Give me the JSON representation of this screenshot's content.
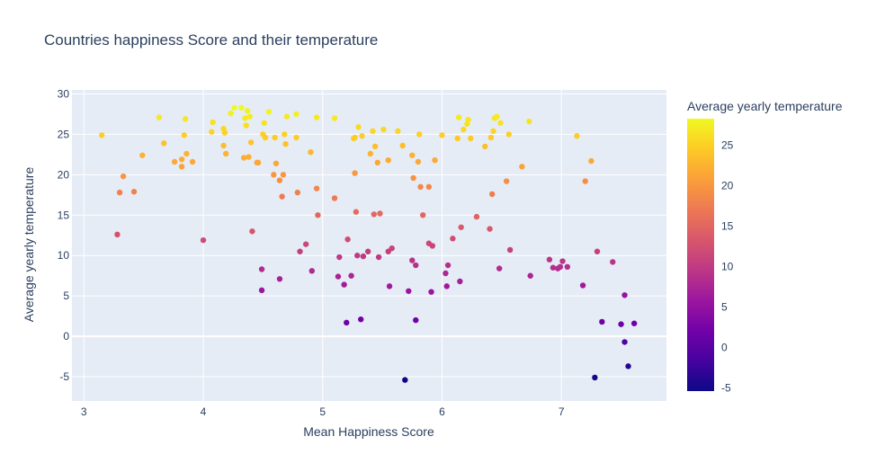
{
  "chart_data": {
    "type": "scatter",
    "title": "Countries happiness Score and their temperature",
    "xlabel": "Mean Happiness Score",
    "ylabel": "Average yearly temperature",
    "colorbar_title": "Average yearly temperature",
    "xlim": [
      2.9,
      7.88
    ],
    "ylim": [
      -8,
      30.5
    ],
    "x_ticks": [
      3,
      4,
      5,
      6,
      7
    ],
    "y_ticks": [
      -5,
      0,
      5,
      10,
      15,
      20,
      25,
      30
    ],
    "colorbar_range": [
      -5.4,
      28.3
    ],
    "colorbar_ticks": [
      -5,
      0,
      5,
      10,
      15,
      20,
      25
    ],
    "colorscale": [
      "#0d0887",
      "#46039f",
      "#7201a8",
      "#9c179e",
      "#bd3786",
      "#d8576b",
      "#ed7953",
      "#fb9f3a",
      "#fdca26",
      "#f0f921"
    ],
    "background": "#e5ecf6",
    "grid": true,
    "points": [
      [
        3.15,
        24.9
      ],
      [
        3.3,
        17.8
      ],
      [
        3.33,
        19.8
      ],
      [
        3.42,
        17.9
      ],
      [
        3.28,
        12.6
      ],
      [
        3.49,
        22.4
      ],
      [
        3.63,
        27.1
      ],
      [
        3.67,
        23.9
      ],
      [
        3.76,
        21.6
      ],
      [
        3.82,
        21.9
      ],
      [
        3.82,
        21.0
      ],
      [
        3.84,
        24.9
      ],
      [
        3.85,
        26.9
      ],
      [
        3.86,
        22.6
      ],
      [
        3.91,
        21.6
      ],
      [
        4.0,
        11.9
      ],
      [
        4.07,
        25.3
      ],
      [
        4.08,
        26.5
      ],
      [
        4.17,
        23.6
      ],
      [
        4.17,
        25.7
      ],
      [
        4.18,
        25.2
      ],
      [
        4.19,
        22.6
      ],
      [
        4.23,
        27.6
      ],
      [
        4.26,
        28.3
      ],
      [
        4.32,
        28.3
      ],
      [
        4.34,
        22.1
      ],
      [
        4.35,
        27.0
      ],
      [
        4.36,
        26.1
      ],
      [
        4.37,
        27.9
      ],
      [
        4.38,
        22.2
      ],
      [
        4.39,
        27.2
      ],
      [
        4.4,
        24.0
      ],
      [
        4.41,
        13.0
      ],
      [
        4.45,
        21.5
      ],
      [
        4.46,
        21.5
      ],
      [
        4.49,
        8.3
      ],
      [
        4.49,
        5.7
      ],
      [
        4.5,
        25.0
      ],
      [
        4.51,
        26.4
      ],
      [
        4.52,
        24.6
      ],
      [
        4.55,
        27.8
      ],
      [
        4.59,
        20.0
      ],
      [
        4.61,
        21.4
      ],
      [
        4.6,
        24.6
      ],
      [
        4.64,
        7.1
      ],
      [
        4.64,
        19.3
      ],
      [
        4.66,
        17.3
      ],
      [
        4.67,
        20.0
      ],
      [
        4.68,
        25.0
      ],
      [
        4.69,
        23.8
      ],
      [
        4.7,
        27.2
      ],
      [
        4.78,
        27.5
      ],
      [
        4.78,
        24.6
      ],
      [
        4.79,
        17.8
      ],
      [
        4.81,
        10.5
      ],
      [
        4.86,
        11.4
      ],
      [
        4.9,
        22.8
      ],
      [
        4.91,
        8.1
      ],
      [
        4.95,
        27.1
      ],
      [
        4.95,
        18.3
      ],
      [
        4.96,
        15.0
      ],
      [
        5.1,
        27.0
      ],
      [
        5.1,
        17.1
      ],
      [
        5.13,
        7.4
      ],
      [
        5.14,
        9.8
      ],
      [
        5.18,
        6.4
      ],
      [
        5.2,
        1.7
      ],
      [
        5.21,
        12.0
      ],
      [
        5.24,
        7.5
      ],
      [
        5.26,
        24.5
      ],
      [
        5.27,
        24.6
      ],
      [
        5.27,
        20.2
      ],
      [
        5.28,
        15.4
      ],
      [
        5.29,
        10.0
      ],
      [
        5.3,
        25.9
      ],
      [
        5.32,
        2.1
      ],
      [
        5.33,
        24.8
      ],
      [
        5.34,
        9.9
      ],
      [
        5.38,
        10.5
      ],
      [
        5.4,
        22.6
      ],
      [
        5.42,
        25.4
      ],
      [
        5.43,
        15.1
      ],
      [
        5.44,
        23.5
      ],
      [
        5.46,
        21.5
      ],
      [
        5.47,
        9.8
      ],
      [
        5.48,
        15.2
      ],
      [
        5.51,
        25.6
      ],
      [
        5.55,
        10.5
      ],
      [
        5.55,
        21.8
      ],
      [
        5.56,
        6.2
      ],
      [
        5.58,
        10.9
      ],
      [
        5.63,
        25.4
      ],
      [
        5.67,
        23.6
      ],
      [
        5.69,
        -5.4
      ],
      [
        5.72,
        5.6
      ],
      [
        5.75,
        9.4
      ],
      [
        5.75,
        22.4
      ],
      [
        5.76,
        19.6
      ],
      [
        5.78,
        2.0
      ],
      [
        5.78,
        8.8
      ],
      [
        5.8,
        21.6
      ],
      [
        5.81,
        25.0
      ],
      [
        5.82,
        18.5
      ],
      [
        5.84,
        15.0
      ],
      [
        5.89,
        11.5
      ],
      [
        5.89,
        18.5
      ],
      [
        5.91,
        5.5
      ],
      [
        5.92,
        11.2
      ],
      [
        5.94,
        21.8
      ],
      [
        6.0,
        24.9
      ],
      [
        6.03,
        7.8
      ],
      [
        6.04,
        6.2
      ],
      [
        6.05,
        8.8
      ],
      [
        6.09,
        12.1
      ],
      [
        6.13,
        24.5
      ],
      [
        6.14,
        27.1
      ],
      [
        6.15,
        6.8
      ],
      [
        6.16,
        13.5
      ],
      [
        6.18,
        25.6
      ],
      [
        6.21,
        26.3
      ],
      [
        6.22,
        26.8
      ],
      [
        6.24,
        24.5
      ],
      [
        6.29,
        14.8
      ],
      [
        6.36,
        23.5
      ],
      [
        6.4,
        13.3
      ],
      [
        6.41,
        24.6
      ],
      [
        6.42,
        17.6
      ],
      [
        6.43,
        25.4
      ],
      [
        6.44,
        27.0
      ],
      [
        6.46,
        27.2
      ],
      [
        6.48,
        8.4
      ],
      [
        6.49,
        26.4
      ],
      [
        6.54,
        19.2
      ],
      [
        6.56,
        25.0
      ],
      [
        6.57,
        10.7
      ],
      [
        6.67,
        21.0
      ],
      [
        6.73,
        26.6
      ],
      [
        6.74,
        7.5
      ],
      [
        6.9,
        9.5
      ],
      [
        6.93,
        8.5
      ],
      [
        6.97,
        8.4
      ],
      [
        6.99,
        8.6
      ],
      [
        7.01,
        9.3
      ],
      [
        7.05,
        8.6
      ],
      [
        7.13,
        24.8
      ],
      [
        7.18,
        6.3
      ],
      [
        7.2,
        19.2
      ],
      [
        7.25,
        21.7
      ],
      [
        7.28,
        -5.1
      ],
      [
        7.3,
        10.5
      ],
      [
        7.34,
        1.8
      ],
      [
        7.43,
        9.2
      ],
      [
        7.5,
        1.5
      ],
      [
        7.53,
        5.1
      ],
      [
        7.53,
        -0.7
      ],
      [
        7.56,
        -3.7
      ],
      [
        7.61,
        1.6
      ]
    ]
  }
}
